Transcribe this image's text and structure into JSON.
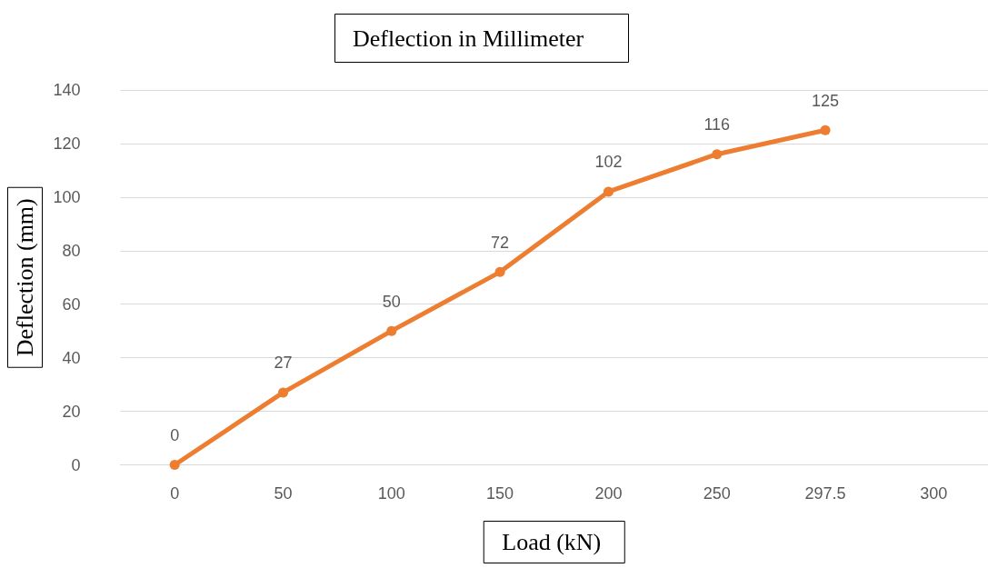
{
  "chart_data": {
    "type": "line",
    "title": "Deflection in Millimeter",
    "xlabel": "Load (kN)",
    "ylabel": "Deflection (mm)",
    "categories": [
      "0",
      "50",
      "100",
      "150",
      "200",
      "250",
      "297.5",
      "300"
    ],
    "series": [
      {
        "color": "#ed7d31",
        "values": [
          0,
          27,
          50,
          72,
          102,
          116,
          125,
          null
        ]
      }
    ],
    "ylim": [
      0,
      140
    ],
    "yticks": [
      0,
      20,
      40,
      60,
      80,
      100,
      120,
      140
    ],
    "grid": "y",
    "marker": "circle",
    "line_style": "solid",
    "data_labels": true
  }
}
